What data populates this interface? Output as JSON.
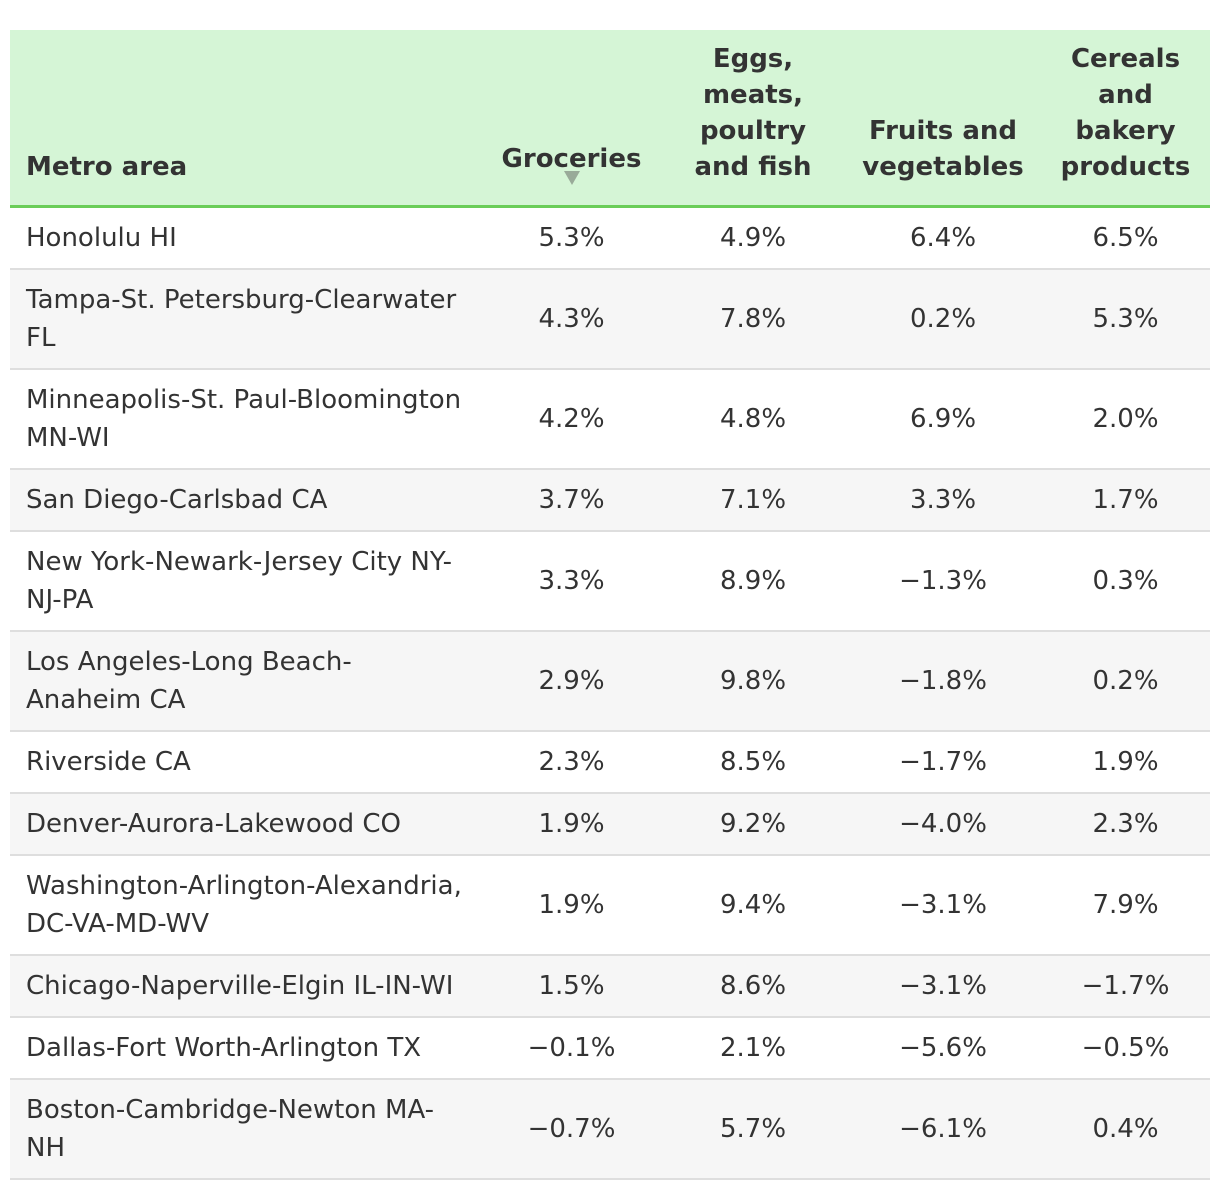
{
  "table": {
    "headers": [
      "Metro area",
      "Groceries",
      "Eggs, meats, poultry and fish",
      "Fruits and vegetables",
      "Cereals and bakery products"
    ],
    "sort_icon": "triangle-down-icon",
    "sorted_column": 1,
    "rows": [
      [
        "Honolulu HI",
        "5.3%",
        "4.9%",
        "6.4%",
        "6.5%"
      ],
      [
        "Tampa-St. Petersburg-Clearwater FL",
        "4.3%",
        "7.8%",
        "0.2%",
        "5.3%"
      ],
      [
        "Minneapolis-St. Paul-Bloomington MN-WI",
        "4.2%",
        "4.8%",
        "6.9%",
        "2.0%"
      ],
      [
        "San Diego-Carlsbad CA",
        "3.7%",
        "7.1%",
        "3.3%",
        "1.7%"
      ],
      [
        "New York-Newark-Jersey City NY-NJ-PA",
        "3.3%",
        "8.9%",
        "−1.3%",
        "0.3%"
      ],
      [
        "Los Angeles-Long Beach-Anaheim CA",
        "2.9%",
        "9.8%",
        "−1.8%",
        "0.2%"
      ],
      [
        "Riverside CA",
        "2.3%",
        "8.5%",
        "−1.7%",
        "1.9%"
      ],
      [
        "Denver-Aurora-Lakewood CO",
        "1.9%",
        "9.2%",
        "−4.0%",
        "2.3%"
      ],
      [
        "Washington-Arlington-Alexandria, DC-VA-MD-WV",
        "1.9%",
        "9.4%",
        "−3.1%",
        "7.9%"
      ],
      [
        "Chicago-Naperville-Elgin IL-IN-WI",
        "1.5%",
        "8.6%",
        "−3.1%",
        "−1.7%"
      ],
      [
        "Dallas-Fort Worth-Arlington TX",
        "−0.1%",
        "2.1%",
        "−5.6%",
        "−0.5%"
      ],
      [
        "Boston-Cambridge-Newton MA-NH",
        "−0.7%",
        "5.7%",
        "−6.1%",
        "0.4%"
      ]
    ]
  },
  "colors": {
    "header_background": "#d5f5d6",
    "header_rule": "#6acd58",
    "stripe": "#f6f6f6",
    "text": "#333333"
  }
}
